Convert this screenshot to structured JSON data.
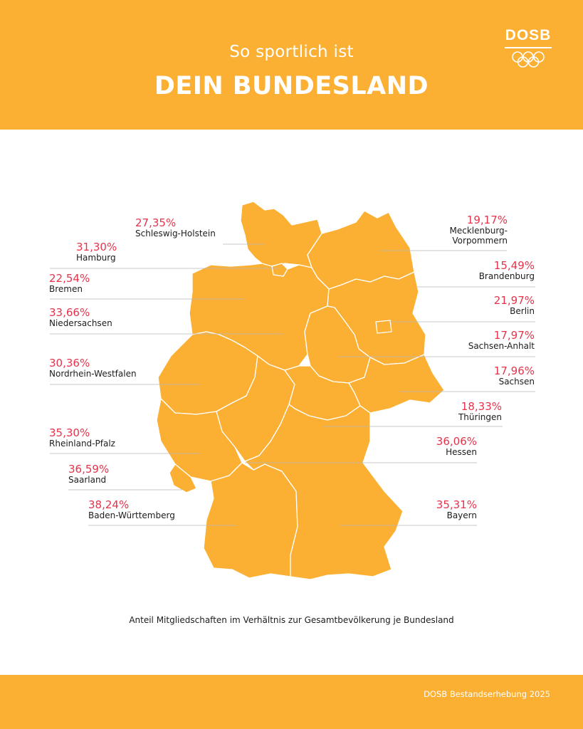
{
  "header": {
    "subtitle": "So sportlich ist",
    "title": "DEIN BUNDESLAND",
    "logo_text": "DOSB"
  },
  "colors": {
    "accent": "#FBB034",
    "value": "#E6334B",
    "text": "#1c1c1c"
  },
  "states": [
    {
      "name": "Schleswig-Holstein",
      "value": "27,35%"
    },
    {
      "name": "Hamburg",
      "value": "31,30%"
    },
    {
      "name": "Bremen",
      "value": "22,54%"
    },
    {
      "name": "Niedersachsen",
      "value": "33,66%"
    },
    {
      "name": "Nordrhein-Westfalen",
      "value": "30,36%"
    },
    {
      "name": "Rheinland-Pfalz",
      "value": "35,30%"
    },
    {
      "name": "Saarland",
      "value": "36,59%"
    },
    {
      "name": "Baden-Württemberg",
      "value": "38,24%"
    },
    {
      "name": "Mecklenburg-Vorpommern",
      "name_line1": "Mecklenburg-",
      "name_line2": "Vorpommern",
      "value": "19,17%"
    },
    {
      "name": "Brandenburg",
      "value": "15,49%"
    },
    {
      "name": "Berlin",
      "value": "21,97%"
    },
    {
      "name": "Sachsen-Anhalt",
      "value": "17,97%"
    },
    {
      "name": "Sachsen",
      "value": "17,96%"
    },
    {
      "name": "Thüringen",
      "value": "18,33%"
    },
    {
      "name": "Hessen",
      "value": "36,06%"
    },
    {
      "name": "Bayern",
      "value": "35,31%"
    }
  ],
  "caption": "Anteil Mitgliedschaften im Verhältnis zur Gesamtbevölkerung je Bundesland",
  "footer": {
    "source": "DOSB Bestandserhebung 2025"
  }
}
